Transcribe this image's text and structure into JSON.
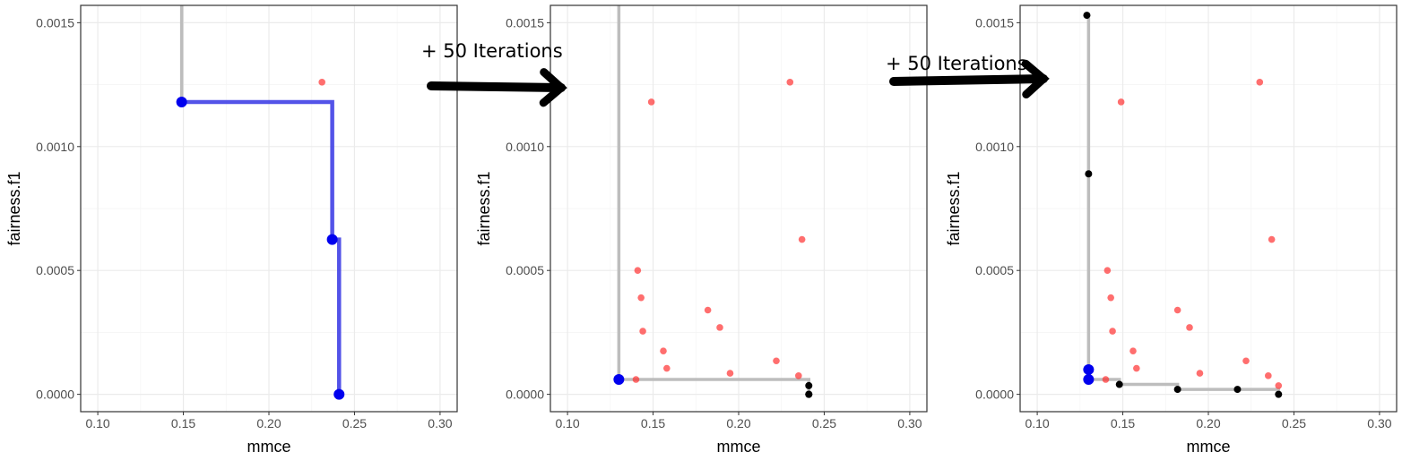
{
  "colors": {
    "grid_major": "#ebebeb",
    "grid_minor": "#f5f5f5",
    "panel_border": "#333333",
    "front_blue": "#0000ee",
    "front_blue_line": "#4040e6",
    "front_gray": "#bdbdbd",
    "point_red": "#ff3030",
    "point_black": "#000000",
    "arrow": "#000000"
  },
  "annotations": [
    {
      "text": "+ 50 Iterations"
    },
    {
      "text": "+ 50 Iterations"
    }
  ],
  "chart_data": [
    {
      "type": "scatter",
      "xlabel": "mmce",
      "ylabel": "fairness.f1",
      "xlim": [
        0.09,
        0.31
      ],
      "ylim": [
        -7e-05,
        0.00157
      ],
      "x_ticks": [
        "0.10",
        "0.15",
        "0.20",
        "0.25",
        "0.30"
      ],
      "y_ticks": [
        "0.0000",
        "0.0005",
        "0.0010",
        "0.0015"
      ],
      "grid": true,
      "front_line": {
        "color": "blue",
        "points": [
          [
            0.149,
            0.00118
          ],
          [
            0.237,
            0.00118
          ],
          [
            0.237,
            0.000625
          ],
          [
            0.241,
            0.000625
          ],
          [
            0.241,
            0.0
          ]
        ]
      },
      "gray_line": {
        "points": [
          [
            0.149,
            0.00157
          ],
          [
            0.149,
            0.00118
          ]
        ]
      },
      "series": [
        {
          "color": "red",
          "points": [
            [
              0.231,
              0.00126
            ]
          ]
        },
        {
          "color": "blue",
          "points": [
            [
              0.149,
              0.00118
            ],
            [
              0.237,
              0.000625
            ],
            [
              0.241,
              0.0
            ]
          ]
        }
      ]
    },
    {
      "type": "scatter",
      "xlabel": "mmce",
      "ylabel": "fairness.f1",
      "xlim": [
        0.09,
        0.31
      ],
      "ylim": [
        -7e-05,
        0.00157
      ],
      "x_ticks": [
        "0.10",
        "0.15",
        "0.20",
        "0.25",
        "0.30"
      ],
      "y_ticks": [
        "0.0000",
        "0.0005",
        "0.0010",
        "0.0015"
      ],
      "grid": true,
      "gray_line": {
        "points": [
          [
            0.13,
            0.00157
          ],
          [
            0.13,
            6e-05
          ],
          [
            0.241,
            6e-05
          ],
          [
            0.241,
            0.0
          ]
        ]
      },
      "series": [
        {
          "color": "red",
          "points": [
            [
              0.149,
              0.00118
            ],
            [
              0.23,
              0.00126
            ],
            [
              0.237,
              0.000625
            ],
            [
              0.141,
              0.0005
            ],
            [
              0.143,
              0.00039
            ],
            [
              0.144,
              0.000255
            ],
            [
              0.156,
              0.000175
            ],
            [
              0.158,
              0.000105
            ],
            [
              0.182,
              0.00034
            ],
            [
              0.189,
              0.00027
            ],
            [
              0.195,
              8.5e-05
            ],
            [
              0.222,
              0.000135
            ],
            [
              0.235,
              7.5e-05
            ],
            [
              0.14,
              6e-05
            ]
          ]
        },
        {
          "color": "black",
          "points": [
            [
              0.241,
              3.5e-05
            ],
            [
              0.241,
              0.0
            ],
            [
              0.241,
              0.0
            ]
          ]
        },
        {
          "color": "blue",
          "points": [
            [
              0.13,
              6e-05
            ]
          ]
        }
      ]
    },
    {
      "type": "scatter",
      "xlabel": "mmce",
      "ylabel": "fairness.f1",
      "xlim": [
        0.09,
        0.31
      ],
      "ylim": [
        -7e-05,
        0.00157
      ],
      "x_ticks": [
        "0.10",
        "0.15",
        "0.20",
        "0.25",
        "0.30"
      ],
      "y_ticks": [
        "0.0000",
        "0.0005",
        "0.0010",
        "0.0015"
      ],
      "grid": true,
      "gray_line": {
        "points": [
          [
            0.13,
            0.00152
          ],
          [
            0.13,
            6e-05
          ],
          [
            0.148,
            6e-05
          ],
          [
            0.148,
            4e-05
          ],
          [
            0.182,
            4e-05
          ],
          [
            0.182,
            2e-05
          ],
          [
            0.217,
            2e-05
          ],
          [
            0.241,
            2e-05
          ],
          [
            0.241,
            0.0
          ]
        ]
      },
      "series": [
        {
          "color": "red",
          "points": [
            [
              0.149,
              0.00118
            ],
            [
              0.23,
              0.00126
            ],
            [
              0.237,
              0.000625
            ],
            [
              0.141,
              0.0005
            ],
            [
              0.143,
              0.00039
            ],
            [
              0.144,
              0.000255
            ],
            [
              0.156,
              0.000175
            ],
            [
              0.158,
              0.000105
            ],
            [
              0.182,
              0.00034
            ],
            [
              0.189,
              0.00027
            ],
            [
              0.195,
              8.5e-05
            ],
            [
              0.222,
              0.000135
            ],
            [
              0.235,
              7.5e-05
            ],
            [
              0.14,
              6e-05
            ],
            [
              0.241,
              3.5e-05
            ]
          ]
        },
        {
          "color": "black",
          "points": [
            [
              0.129,
              0.00153
            ],
            [
              0.13,
              0.00089
            ],
            [
              0.148,
              4e-05
            ],
            [
              0.182,
              2e-05
            ],
            [
              0.217,
              2e-05
            ],
            [
              0.241,
              0.0
            ]
          ]
        },
        {
          "color": "blue",
          "points": [
            [
              0.13,
              0.0001
            ],
            [
              0.13,
              6e-05
            ]
          ]
        }
      ]
    }
  ]
}
